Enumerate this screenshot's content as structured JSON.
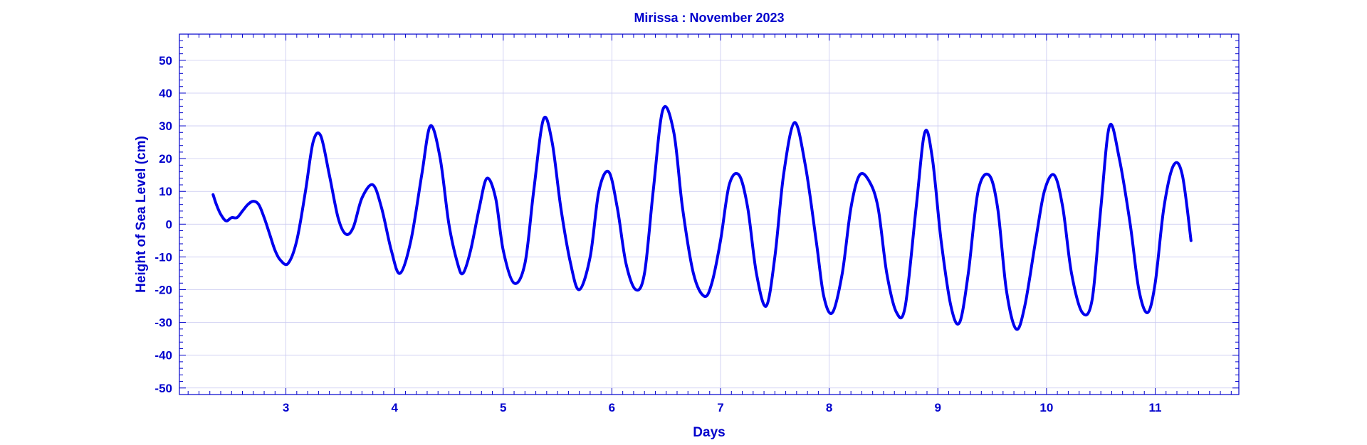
{
  "chart_data": {
    "type": "line",
    "title": "Mirissa : November 2023",
    "xlabel": "Days",
    "ylabel": "Height of Sea Level (cm)",
    "xlim": [
      2.02,
      11.77
    ],
    "ylim": [
      -52,
      58
    ],
    "xticks": [
      3,
      4,
      5,
      6,
      7,
      8,
      9,
      10,
      11
    ],
    "yticks": [
      -50,
      -40,
      -30,
      -20,
      -10,
      0,
      10,
      20,
      30,
      40,
      50
    ],
    "grid": true,
    "color": "#0000ee",
    "axis_color": "#0000cc",
    "series": [
      {
        "x": [
          2.33,
          2.36,
          2.4,
          2.45,
          2.5,
          2.55,
          2.6,
          2.65,
          2.7,
          2.75,
          2.8,
          2.85,
          2.9,
          2.95,
          3.02,
          3.1,
          3.18,
          3.25,
          3.32,
          3.4,
          3.48,
          3.55,
          3.62,
          3.7,
          3.8,
          3.88,
          3.97,
          4.05,
          4.15,
          4.25,
          4.33,
          4.42,
          4.5,
          4.58,
          4.63,
          4.7,
          4.78,
          4.85,
          4.93,
          5.0,
          5.1,
          5.2,
          5.28,
          5.37,
          5.45,
          5.53,
          5.62,
          5.7,
          5.8,
          5.88,
          5.97,
          6.05,
          6.13,
          6.22,
          6.3,
          6.38,
          6.47,
          6.57,
          6.65,
          6.75,
          6.85,
          6.92,
          7.0,
          7.08,
          7.17,
          7.25,
          7.33,
          7.42,
          7.5,
          7.58,
          7.68,
          7.78,
          7.88,
          7.95,
          8.03,
          8.12,
          8.2,
          8.28,
          8.37,
          8.45,
          8.53,
          8.62,
          8.7,
          8.8,
          8.88,
          8.95,
          9.03,
          9.12,
          9.2,
          9.28,
          9.37,
          9.47,
          9.55,
          9.63,
          9.72,
          9.8,
          9.9,
          9.98,
          10.07,
          10.15,
          10.23,
          10.33,
          10.42,
          10.5,
          10.58,
          10.67,
          10.77,
          10.85,
          10.93,
          11.0,
          11.08,
          11.17,
          11.25,
          11.33
        ],
        "values": [
          9,
          6,
          3,
          1,
          2,
          2,
          4,
          6,
          7,
          6,
          2,
          -3,
          -8,
          -11,
          -12,
          -5,
          10,
          25,
          27,
          15,
          2,
          -3,
          -1,
          8,
          12,
          5,
          -8,
          -15,
          -5,
          15,
          30,
          20,
          0,
          -12,
          -15,
          -8,
          5,
          14,
          8,
          -8,
          -18,
          -12,
          10,
          32,
          25,
          5,
          -12,
          -20,
          -10,
          10,
          16,
          5,
          -12,
          -20,
          -15,
          10,
          35,
          28,
          5,
          -15,
          -22,
          -18,
          -5,
          12,
          15,
          5,
          -15,
          -25,
          -10,
          15,
          31,
          18,
          -5,
          -22,
          -27,
          -15,
          5,
          15,
          13,
          5,
          -15,
          -27,
          -25,
          5,
          28,
          20,
          -5,
          -25,
          -30,
          -15,
          10,
          15,
          5,
          -20,
          -32,
          -25,
          -5,
          10,
          15,
          5,
          -15,
          -27,
          -23,
          5,
          30,
          20,
          0,
          -20,
          -27,
          -18,
          5,
          18,
          15,
          -5
        ]
      }
    ]
  }
}
